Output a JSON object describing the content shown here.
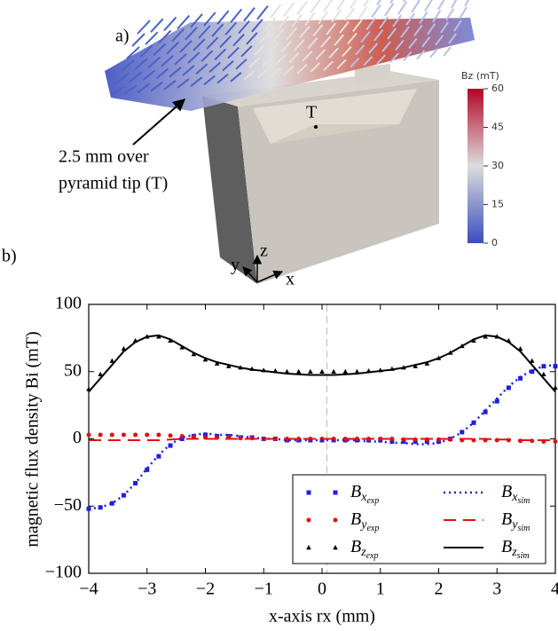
{
  "panel_a": {
    "label": "a)",
    "point_label": "T",
    "annotation_lines": [
      "2.5 mm over",
      "pyramid tip (T)"
    ],
    "axis_labels": {
      "x": "x",
      "y": "y",
      "z": "z"
    },
    "colorbar": {
      "title": "Bz (mT)",
      "lim": [
        0,
        60
      ],
      "ticks": [
        0,
        15,
        30,
        45,
        60
      ],
      "colors": [
        "#3b4cc0",
        "#dddddd",
        "#b40426"
      ]
    }
  },
  "panel_b_label": "b)",
  "chart_data": {
    "type": "line",
    "xlabel": "x-axis rx (mm)",
    "ylabel": "magnetic flux density Bi (mT)",
    "xlim": [
      -4,
      4
    ],
    "ylim": [
      -100,
      100
    ],
    "xticks": [
      {
        "value": -4,
        "label": "−4"
      },
      {
        "value": -3,
        "label": "−3"
      },
      {
        "value": -2,
        "label": "−2"
      },
      {
        "value": -1,
        "label": "−1"
      },
      0,
      1,
      2,
      3,
      4
    ],
    "yticks": [
      {
        "value": -100,
        "label": "−100"
      },
      {
        "value": -50,
        "label": "−50"
      },
      0,
      50,
      100
    ],
    "x": [
      -4,
      -3.8,
      -3.6,
      -3.4,
      -3.2,
      -3,
      -2.8,
      -2.6,
      -2.4,
      -2.2,
      -2,
      -1.8,
      -1.6,
      -1.4,
      -1.2,
      -1,
      -0.8,
      -0.6,
      -0.4,
      -0.2,
      0,
      0.2,
      0.4,
      0.6,
      0.8,
      1,
      1.2,
      1.4,
      1.6,
      1.8,
      2,
      2.2,
      2.4,
      2.6,
      2.8,
      3,
      3.2,
      3.4,
      3.6,
      3.8,
      4
    ],
    "legend": "lower center",
    "series": [
      {
        "name": "Bxexp",
        "color": "#1f1fe0",
        "marker": "square",
        "values": [
          -52,
          -51,
          -48,
          -42,
          -33,
          -23,
          -13,
          -5,
          0,
          2,
          3,
          2,
          2,
          1,
          1,
          0,
          0,
          -1,
          -1,
          -1,
          -1,
          -1,
          -1,
          -1,
          -1,
          -1,
          -2,
          -2,
          -2,
          -2,
          -2,
          0,
          5,
          12,
          20,
          28,
          38,
          45,
          50,
          54,
          54
        ]
      },
      {
        "name": "Byexp",
        "color": "#e01010",
        "marker": "circle",
        "values": [
          3,
          3,
          3,
          3,
          3,
          3,
          3,
          2.5,
          2,
          1.5,
          1,
          1,
          1,
          0.5,
          0.5,
          0,
          0,
          0,
          0,
          0,
          0,
          0,
          0,
          0,
          0,
          0,
          0,
          -0.5,
          -0.5,
          -0.5,
          -0.5,
          -0.5,
          -1,
          -1,
          -1,
          -1,
          -1,
          -1.5,
          -1.5,
          -2,
          -2
        ]
      },
      {
        "name": "Bzexp",
        "color": "#000000",
        "marker": "triangle",
        "values": [
          37,
          48,
          58,
          67,
          73,
          76,
          76,
          73,
          68,
          63,
          59,
          56,
          54,
          53,
          52,
          51,
          50.5,
          50,
          50,
          50,
          50,
          50,
          50,
          50,
          50.5,
          51,
          52,
          53,
          54,
          56,
          60,
          64,
          69,
          73,
          76,
          76,
          73,
          67,
          58,
          48,
          38
        ]
      },
      {
        "name": "Bxsim",
        "color": "#1f1fe0",
        "linestyle": "dotted",
        "values": [
          -52,
          -51,
          -48,
          -42,
          -33,
          -22,
          -12,
          -4,
          1,
          3,
          4,
          3,
          3,
          2,
          1,
          0,
          0,
          -1,
          -1,
          -1,
          -1,
          -1,
          -1,
          -1,
          -2,
          -2,
          -3,
          -3,
          -4,
          -4,
          -3,
          0,
          5,
          12,
          21,
          30,
          39,
          46,
          51,
          54,
          55
        ]
      },
      {
        "name": "Bysim",
        "color": "#e01010",
        "linestyle": "dashed",
        "values": [
          -1,
          -1,
          -1,
          -1,
          -1,
          -1,
          -1,
          -0.5,
          0,
          0,
          0,
          0,
          0,
          0,
          0,
          0,
          0,
          0,
          0,
          0,
          0,
          0,
          0,
          0,
          0,
          0,
          0,
          0,
          0,
          0,
          0,
          0,
          0,
          0,
          0,
          -0.5,
          -0.5,
          -1,
          -1,
          -1,
          -1
        ]
      },
      {
        "name": "Bzsim",
        "color": "#000000",
        "linestyle": "solid",
        "values": [
          35,
          45,
          55,
          65,
          72,
          76,
          77,
          74,
          69,
          64,
          60,
          57,
          55,
          53,
          51.5,
          50.5,
          49.5,
          48.5,
          48,
          47.5,
          47.5,
          47.5,
          48,
          48.5,
          49.5,
          50.5,
          51.5,
          53,
          55,
          57,
          60,
          64,
          69,
          74,
          77,
          76,
          72,
          65,
          55,
          45,
          35
        ]
      }
    ]
  }
}
